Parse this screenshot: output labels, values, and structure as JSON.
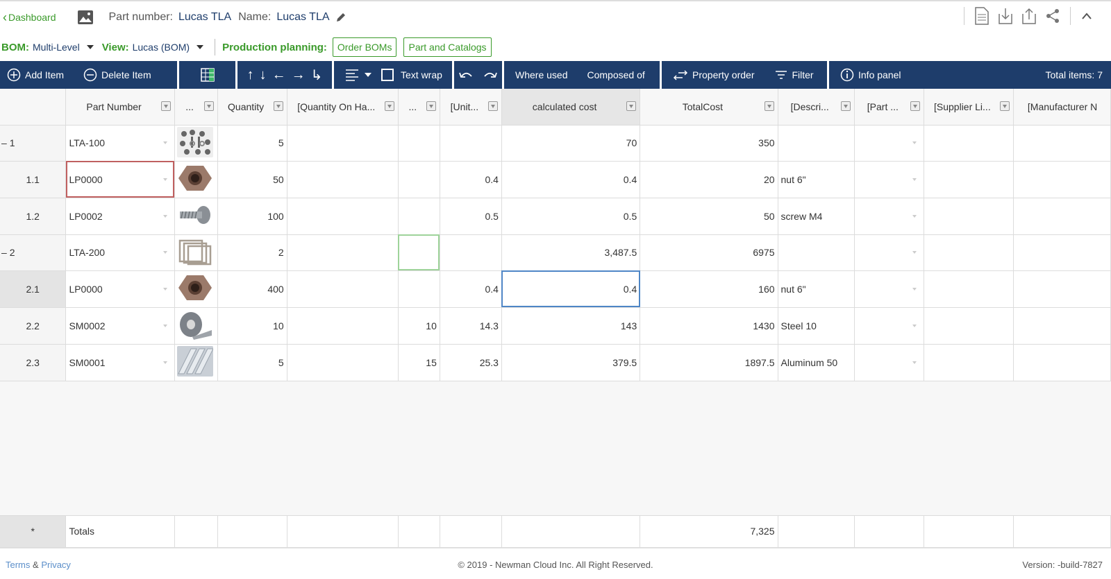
{
  "header": {
    "back_label": "Dashboard",
    "part_number_label": "Part number:",
    "part_number": "Lucas TLA",
    "name_label": "Name:",
    "name": "Lucas TLA"
  },
  "bar2": {
    "bom_label": "BOM:",
    "bom_value": "Multi-Level",
    "view_label": "View:",
    "view_value": "Lucas (BOM)",
    "planning_label": "Production planning:",
    "order_boms": "Order BOMs",
    "part_catalogs": "Part and Catalogs"
  },
  "toolbar": {
    "add_item": "Add Item",
    "delete_item": "Delete Item",
    "text_wrap": "Text wrap",
    "where_used": "Where used",
    "composed_of": "Composed of",
    "property_order": "Property order",
    "filter": "Filter",
    "info_panel": "Info panel",
    "total_items": "Total items: 7"
  },
  "columns": [
    "",
    "Part Number",
    "...",
    "Quantity",
    "[Quantity On Ha...",
    "...",
    "[Unit...",
    "calculated cost",
    "TotalCost",
    "[Descri...",
    "[Part ...",
    "[Supplier Li...",
    "[Manufacturer N"
  ],
  "rows": [
    {
      "idx": "1",
      "collapse": "–",
      "part": "LTA-100",
      "img": "bolts",
      "qty": "5",
      "qoh": "",
      "c6": "",
      "unit": "",
      "calc": "70",
      "total": "350",
      "desc": ""
    },
    {
      "idx": "1.1",
      "collapse": "",
      "part": "LP0000",
      "img": "nut",
      "qty": "50",
      "qoh": "",
      "c6": "",
      "unit": "0.4",
      "calc": "0.4",
      "total": "20",
      "desc": "nut 6\""
    },
    {
      "idx": "1.2",
      "collapse": "",
      "part": "LP0002",
      "img": "screw",
      "qty": "100",
      "qoh": "",
      "c6": "",
      "unit": "0.5",
      "calc": "0.5",
      "total": "50",
      "desc": "screw M4"
    },
    {
      "idx": "2",
      "collapse": "–",
      "part": "LTA-200",
      "img": "frame",
      "qty": "2",
      "qoh": "",
      "c6": "",
      "unit": "",
      "calc": "3,487.5",
      "total": "6975",
      "desc": ""
    },
    {
      "idx": "2.1",
      "collapse": "",
      "part": "LP0000",
      "img": "nut",
      "qty": "400",
      "qoh": "",
      "c6": "",
      "unit": "0.4",
      "calc": "0.4",
      "total": "160",
      "desc": "nut 6\""
    },
    {
      "idx": "2.2",
      "collapse": "",
      "part": "SM0002",
      "img": "coil",
      "qty": "10",
      "qoh": "",
      "c6": "10",
      "unit": "14.3",
      "calc": "143",
      "total": "1430",
      "desc": "Steel 10"
    },
    {
      "idx": "2.3",
      "collapse": "",
      "part": "SM0001",
      "img": "aluminum",
      "qty": "5",
      "qoh": "",
      "c6": "15",
      "unit": "25.3",
      "calc": "379.5",
      "total": "1897.5",
      "desc": "Aluminum 50"
    }
  ],
  "totals": {
    "idx": "*",
    "label": "Totals",
    "total": "7,325"
  },
  "footer": {
    "terms": "Terms",
    "amp": "&",
    "privacy": "Privacy",
    "copyright": "© 2019 - Newman Cloud Inc. All Right Reserved.",
    "version": "Version: -build-7827"
  },
  "colors": {
    "navy": "#1e3d6b",
    "green": "#3a9a2a"
  }
}
